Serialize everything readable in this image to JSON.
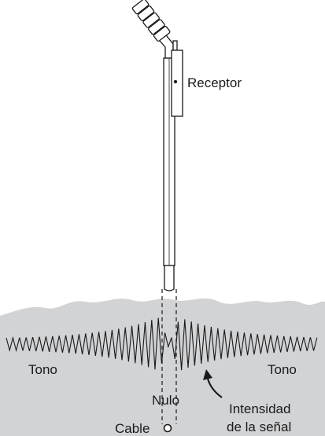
{
  "labels": {
    "receiver": "Receptor",
    "tone_left": "Tono",
    "tone_right": "Tono",
    "null": "Nulo",
    "cable": "Cable",
    "signal_strength_line1": "Intensidad",
    "signal_strength_line2": "de la señal"
  },
  "colors": {
    "ground": "#d2d3d5",
    "ink": "#1a1a1a",
    "background": "#ffffff"
  }
}
